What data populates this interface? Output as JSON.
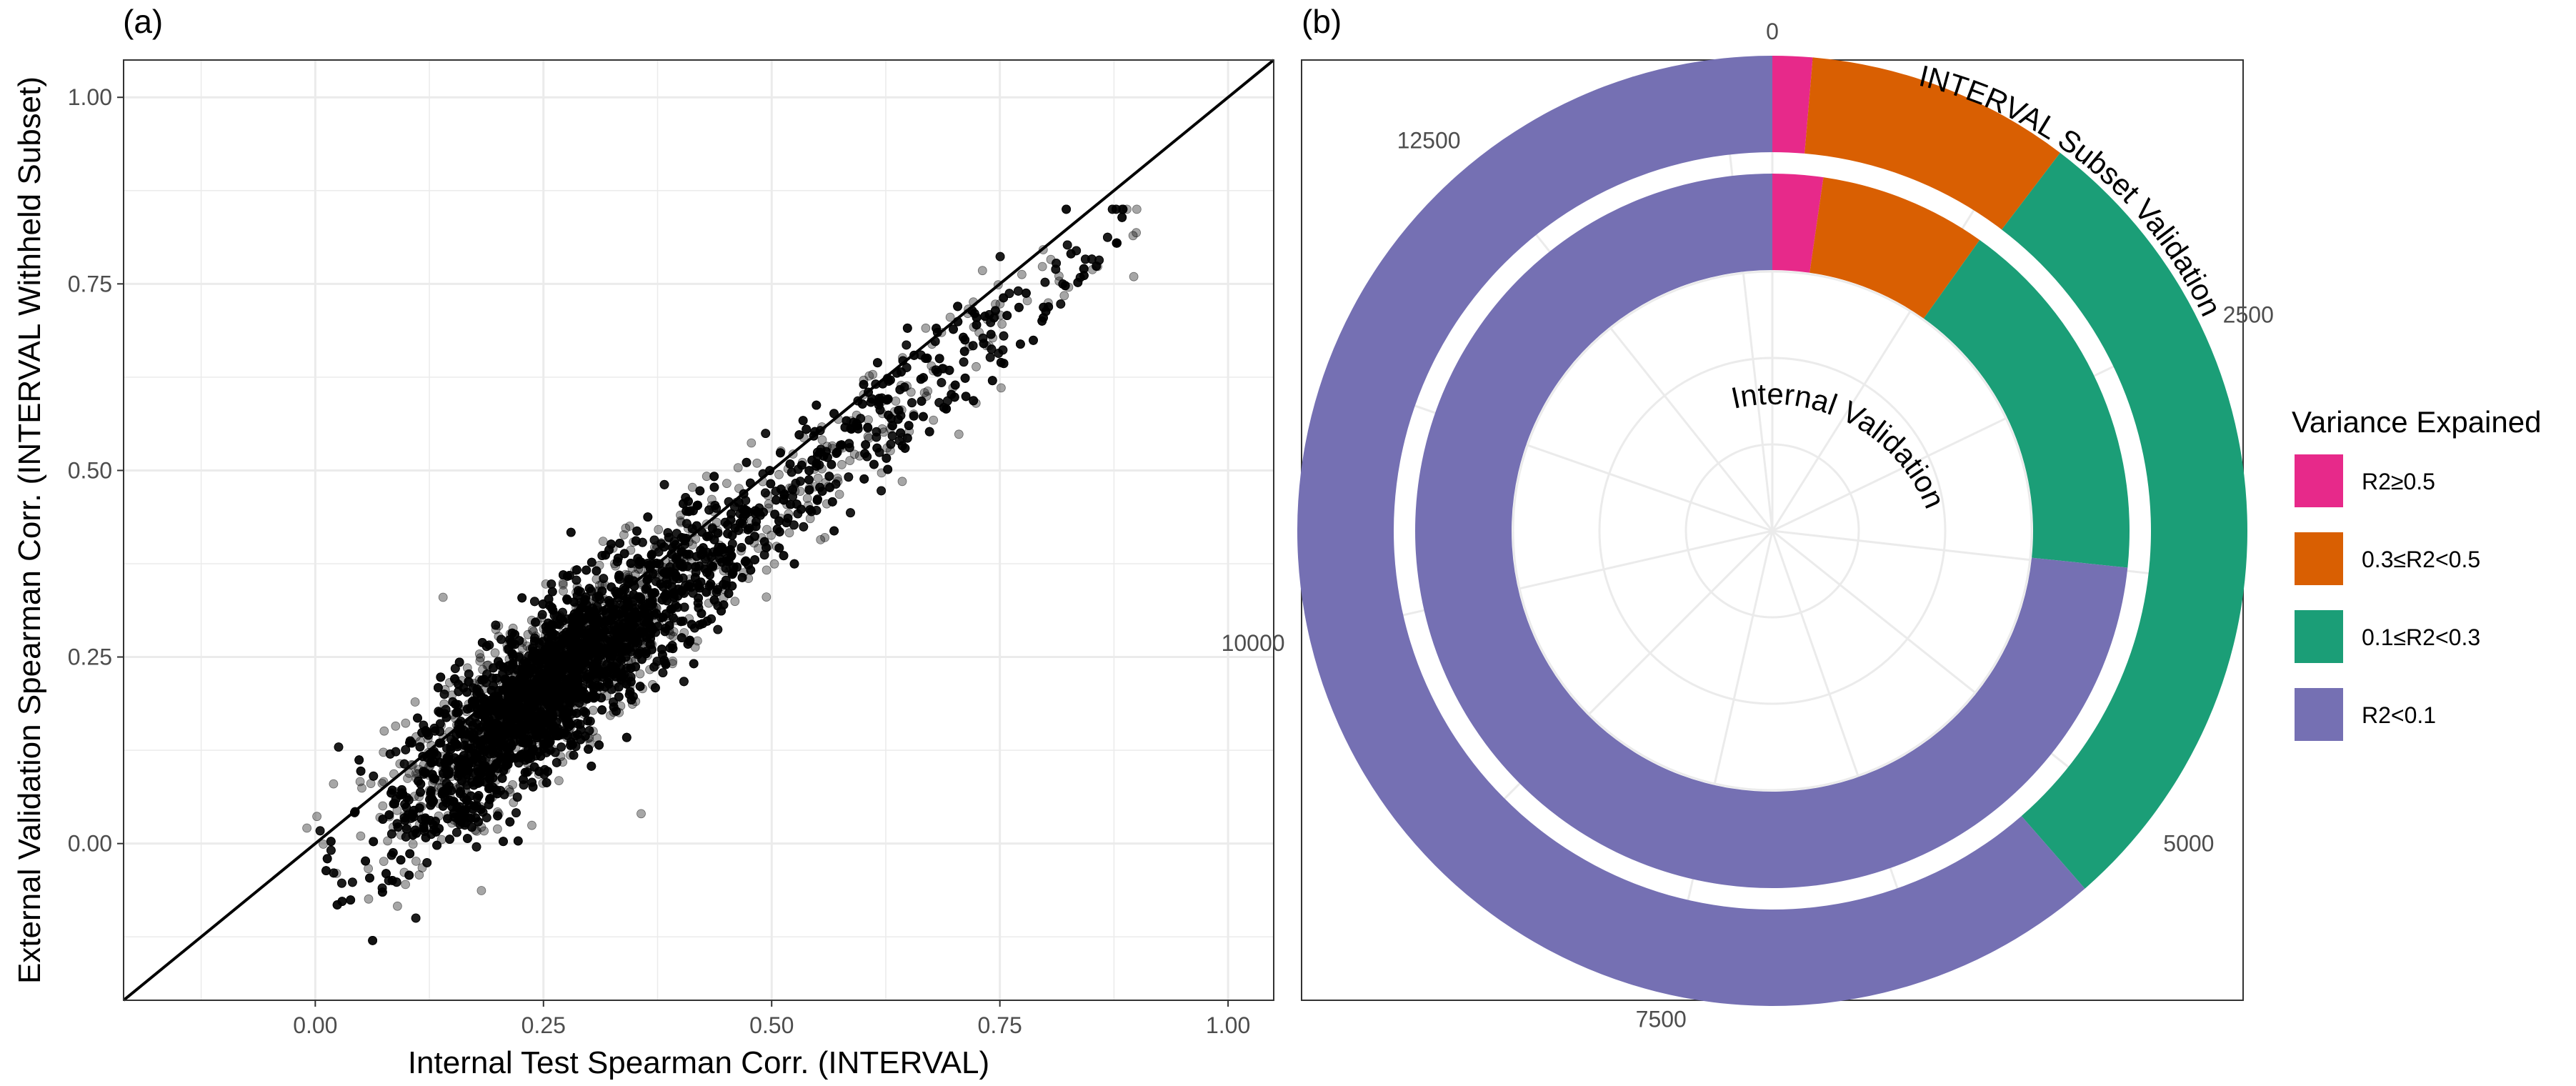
{
  "panel_a": {
    "label": "(a)",
    "xlabel": "Internal Test Spearman Corr. (INTERVAL)",
    "ylabel": "External Validation Spearman Corr. (INTERVAL Withheld Subset)"
  },
  "panel_b": {
    "label": "(b)",
    "outer_ring_label": "INTERVAL Subset Validation",
    "inner_ring_label": "Internal Validation",
    "legend_title": "Variance Expained"
  },
  "chart_data": [
    {
      "type": "scatter",
      "panel": "(a)",
      "title": "",
      "xlabel": "Internal Test Spearman Corr. (INTERVAL)",
      "ylabel": "External Validation Spearman Corr. (INTERVAL Withheld Subset)",
      "xlim": [
        -0.21,
        1.05
      ],
      "ylim": [
        -0.21,
        1.05
      ],
      "x_ticks": [
        "0.00",
        "0.25",
        "0.50",
        "0.75",
        "1.00"
      ],
      "y_ticks": [
        "0.00",
        "0.25",
        "0.50",
        "0.75",
        "1.00"
      ],
      "grid": true,
      "reference_line": "y = x",
      "point_color": "#000000",
      "point_opacity": 0.35,
      "point_cloud": {
        "approx_points": 12000,
        "x_range": [
          -0.01,
          0.9
        ],
        "y_range": [
          -0.13,
          0.85
        ],
        "x_center": 0.25,
        "x_spread": 0.15,
        "trend_slope": 0.98,
        "trend_intercept": -0.04,
        "residual_sd": 0.045
      },
      "outliers": [
        {
          "x": 0.357,
          "y": 0.04
        },
        {
          "x": 0.14,
          "y": 0.33
        },
        {
          "x": 0.9,
          "y": 0.85
        },
        {
          "x": 0.02,
          "y": 0.08
        },
        {
          "x": 0.13,
          "y": 0.07
        }
      ]
    },
    {
      "type": "pie",
      "subtype": "donut",
      "panel": "(b)",
      "title": "",
      "legend_title": "Variance Expained",
      "legend_position": "right",
      "angle_ticks": [
        "0",
        "2500",
        "5000",
        "7500",
        "10000",
        "12500"
      ],
      "total": 14000,
      "categories": [
        "R2≥0.5",
        "0.3≤R2<0.5",
        "0.1≤R2<0.3",
        "R2<0.1"
      ],
      "colors": [
        "#e7298a",
        "#d95f02",
        "#1b9e77",
        "#7570b3"
      ],
      "series": [
        {
          "name": "INTERVAL Subset Validation",
          "values": [
            190,
            1260,
            3950,
            8600
          ]
        },
        {
          "name": "Internal Validation",
          "values": [
            320,
            1060,
            2350,
            10270
          ]
        }
      ]
    }
  ]
}
